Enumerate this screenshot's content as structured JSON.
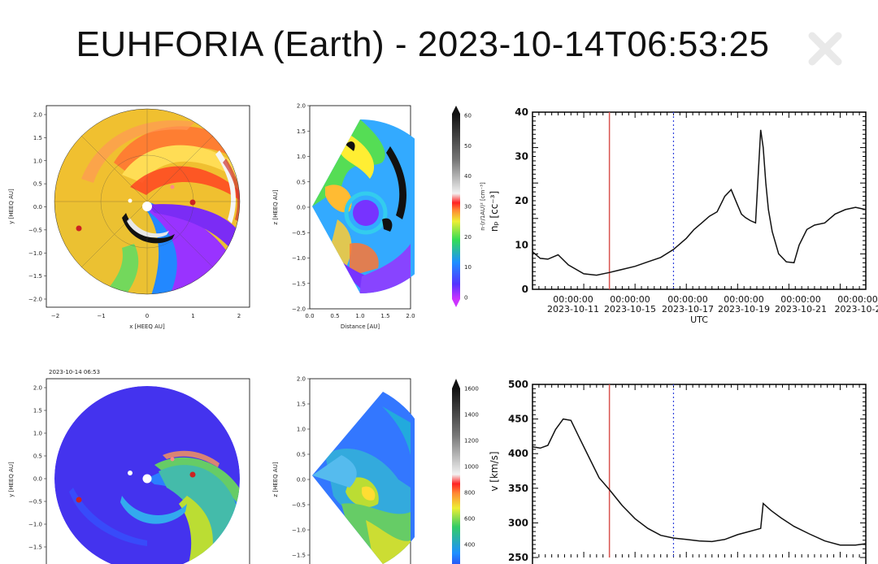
{
  "title": "EUHFORIA (Earth) -  2023-10-14T06:53:25",
  "colors": {
    "density_line": "#111111",
    "marker_now": "#d9534f",
    "marker_dotted": "#3344dd"
  },
  "row1": {
    "map_xy": {
      "xlabel": "x [HEEQ AU]",
      "ylabel": "y [HEEQ AU]",
      "xticks": [
        "−2",
        "−1",
        "0",
        "1",
        "2"
      ],
      "yticks": [
        "2.0",
        "1.5",
        "1.0",
        "0.5",
        "0.0",
        "−0.5",
        "−1.0",
        "−1.5",
        "−2.0"
      ]
    },
    "map_xz": {
      "xlabel": "Distance [AU]",
      "ylabel": "z [HEEQ AU]",
      "xticks": [
        "0.0",
        "0.5",
        "1.0",
        "1.5",
        "2.0"
      ],
      "yticks": [
        "2.0",
        "1.5",
        "1.0",
        "0.5",
        "0.0",
        "−0.5",
        "−1.0",
        "−1.5",
        "−2.0"
      ]
    },
    "colorbar": {
      "label": "n·(r/1AU)² [cm⁻³]",
      "ticks": [
        "60",
        "50",
        "40",
        "30",
        "20",
        "10",
        "0"
      ]
    }
  },
  "row2": {
    "timestamp": "2023-10-14 06:53",
    "map_xy": {
      "ylabel": "y [HEEQ AU]",
      "yticks": [
        "2.0",
        "1.5",
        "1.0",
        "0.5",
        "0.0",
        "−0.5",
        "−1.0",
        "−1.5"
      ]
    },
    "map_xz": {
      "ylabel": "z [HEEQ AU]",
      "yticks": [
        "2.0",
        "1.5",
        "1.0",
        "0.5",
        "0.0",
        "−0.5",
        "−1.0",
        "−1.5"
      ]
    },
    "colorbar": {
      "ticks": [
        "1600",
        "1400",
        "1200",
        "1000",
        "800",
        "600",
        "400"
      ]
    }
  },
  "chart_data": [
    {
      "type": "line",
      "ylabel": "nₚ [cc⁻³]",
      "xlabel": "UTC",
      "ylim": [
        0,
        40
      ],
      "yticks": [
        "0",
        "10",
        "20",
        "30",
        "40"
      ],
      "xticks": [
        {
          "time": "00:00:00",
          "date": "2023-10-11"
        },
        {
          "time": "00:00:00",
          "date": "2023-10-15"
        },
        {
          "time": "00:00:00",
          "date": "2023-10-17"
        },
        {
          "time": "00:00:00",
          "date": "2023-10-19"
        },
        {
          "time": "00:00:00",
          "date": "2023-10-21"
        },
        {
          "time": "00:00:00",
          "date": "2023-10-2"
        }
      ],
      "x": [
        0,
        0.3,
        0.6,
        1.0,
        1.4,
        2.0,
        2.5,
        3.0,
        3.5,
        4.0,
        4.5,
        5.0,
        5.5,
        6.0,
        6.3,
        6.6,
        6.9,
        7.2,
        7.5,
        7.75,
        8.0,
        8.15,
        8.3,
        8.5,
        8.7,
        8.9,
        9.0,
        9.1,
        9.2,
        9.35,
        9.6,
        9.9,
        10.2,
        10.4,
        10.7,
        11.0,
        11.4,
        11.8,
        12.2,
        12.6,
        13.0
      ],
      "values": [
        8.5,
        7,
        6.8,
        7.8,
        5.5,
        3.5,
        3.2,
        3.8,
        4.5,
        5.2,
        6.2,
        7.2,
        9,
        11.5,
        13.5,
        15,
        16.5,
        17.5,
        21,
        22.5,
        19,
        17,
        16.2,
        15.5,
        15,
        36,
        32,
        24,
        18,
        13,
        8,
        6.2,
        6,
        10,
        13.5,
        14.5,
        15,
        17,
        18,
        18.5,
        18
      ],
      "markers": {
        "solid": 3.0,
        "dotted": 5.5
      }
    },
    {
      "type": "line",
      "ylabel": "v [km/s]",
      "ylim": [
        250,
        500
      ],
      "yticks": [
        "250",
        "300",
        "350",
        "400",
        "450",
        "500"
      ],
      "x": [
        0,
        0.3,
        0.6,
        0.9,
        1.2,
        1.5,
        1.8,
        2.2,
        2.6,
        3.0,
        3.5,
        4.0,
        4.5,
        5.0,
        5.5,
        6.0,
        6.5,
        7.0,
        7.5,
        8.0,
        8.5,
        8.9,
        9.0,
        9.3,
        9.7,
        10.2,
        10.8,
        11.4,
        12.0,
        12.6,
        13.0
      ],
      "values": [
        410,
        408,
        412,
        435,
        450,
        448,
        425,
        395,
        365,
        348,
        325,
        306,
        292,
        282,
        278,
        276,
        274,
        273,
        276,
        283,
        288,
        292,
        328,
        318,
        307,
        295,
        284,
        274,
        268,
        268,
        270
      ],
      "markers": {
        "solid": 3.0,
        "dotted": 5.5
      }
    }
  ]
}
